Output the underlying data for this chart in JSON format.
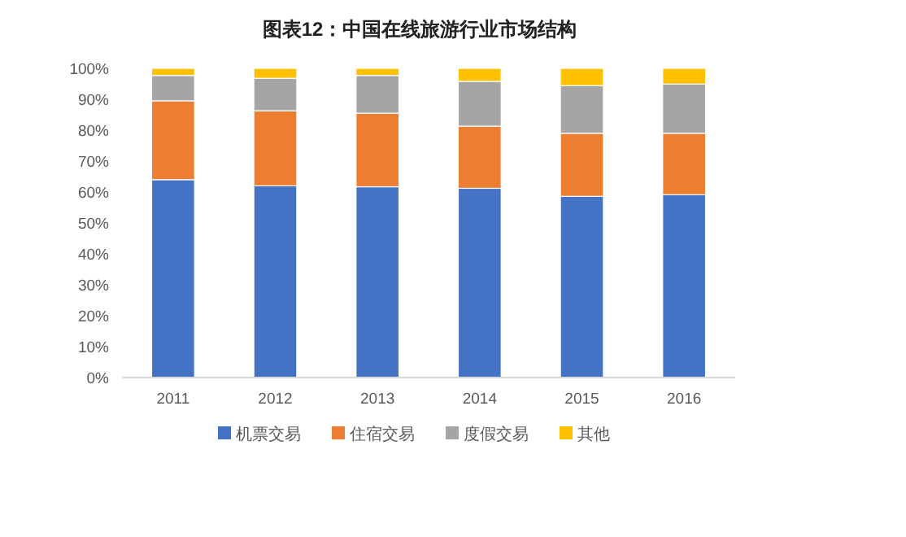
{
  "chart_data": {
    "type": "bar",
    "stacked": true,
    "title": "图表12：中国在线旅游行业市场结构",
    "categories": [
      "2011",
      "2012",
      "2013",
      "2014",
      "2015",
      "2016"
    ],
    "series": [
      {
        "name": "机票交易",
        "color": "#4472c4",
        "values": [
          64,
          62,
          61.7,
          61.2,
          58.6,
          59.1
        ]
      },
      {
        "name": "住宿交易",
        "color": "#ed7d31",
        "values": [
          25.5,
          24.3,
          23.8,
          20.1,
          20.4,
          19.9
        ]
      },
      {
        "name": "度假交易",
        "color": "#a5a5a5",
        "values": [
          8.2,
          10.5,
          12.2,
          14.5,
          15.4,
          15.9
        ]
      },
      {
        "name": "其他",
        "color": "#ffc000",
        "values": [
          2.3,
          3.2,
          2.3,
          4.2,
          5.6,
          5.1
        ]
      }
    ],
    "ylim": [
      0,
      100
    ],
    "yticks": [
      {
        "value": 0,
        "label": "0%"
      },
      {
        "value": 10,
        "label": "10%"
      },
      {
        "value": 20,
        "label": "20%"
      },
      {
        "value": 30,
        "label": "30%"
      },
      {
        "value": 40,
        "label": "40%"
      },
      {
        "value": 50,
        "label": "50%"
      },
      {
        "value": 60,
        "label": "60%"
      },
      {
        "value": 70,
        "label": "70%"
      },
      {
        "value": 80,
        "label": "80%"
      },
      {
        "value": 90,
        "label": "90%"
      },
      {
        "value": 100,
        "label": "100%"
      }
    ],
    "grid": false,
    "legend": "bottom"
  }
}
